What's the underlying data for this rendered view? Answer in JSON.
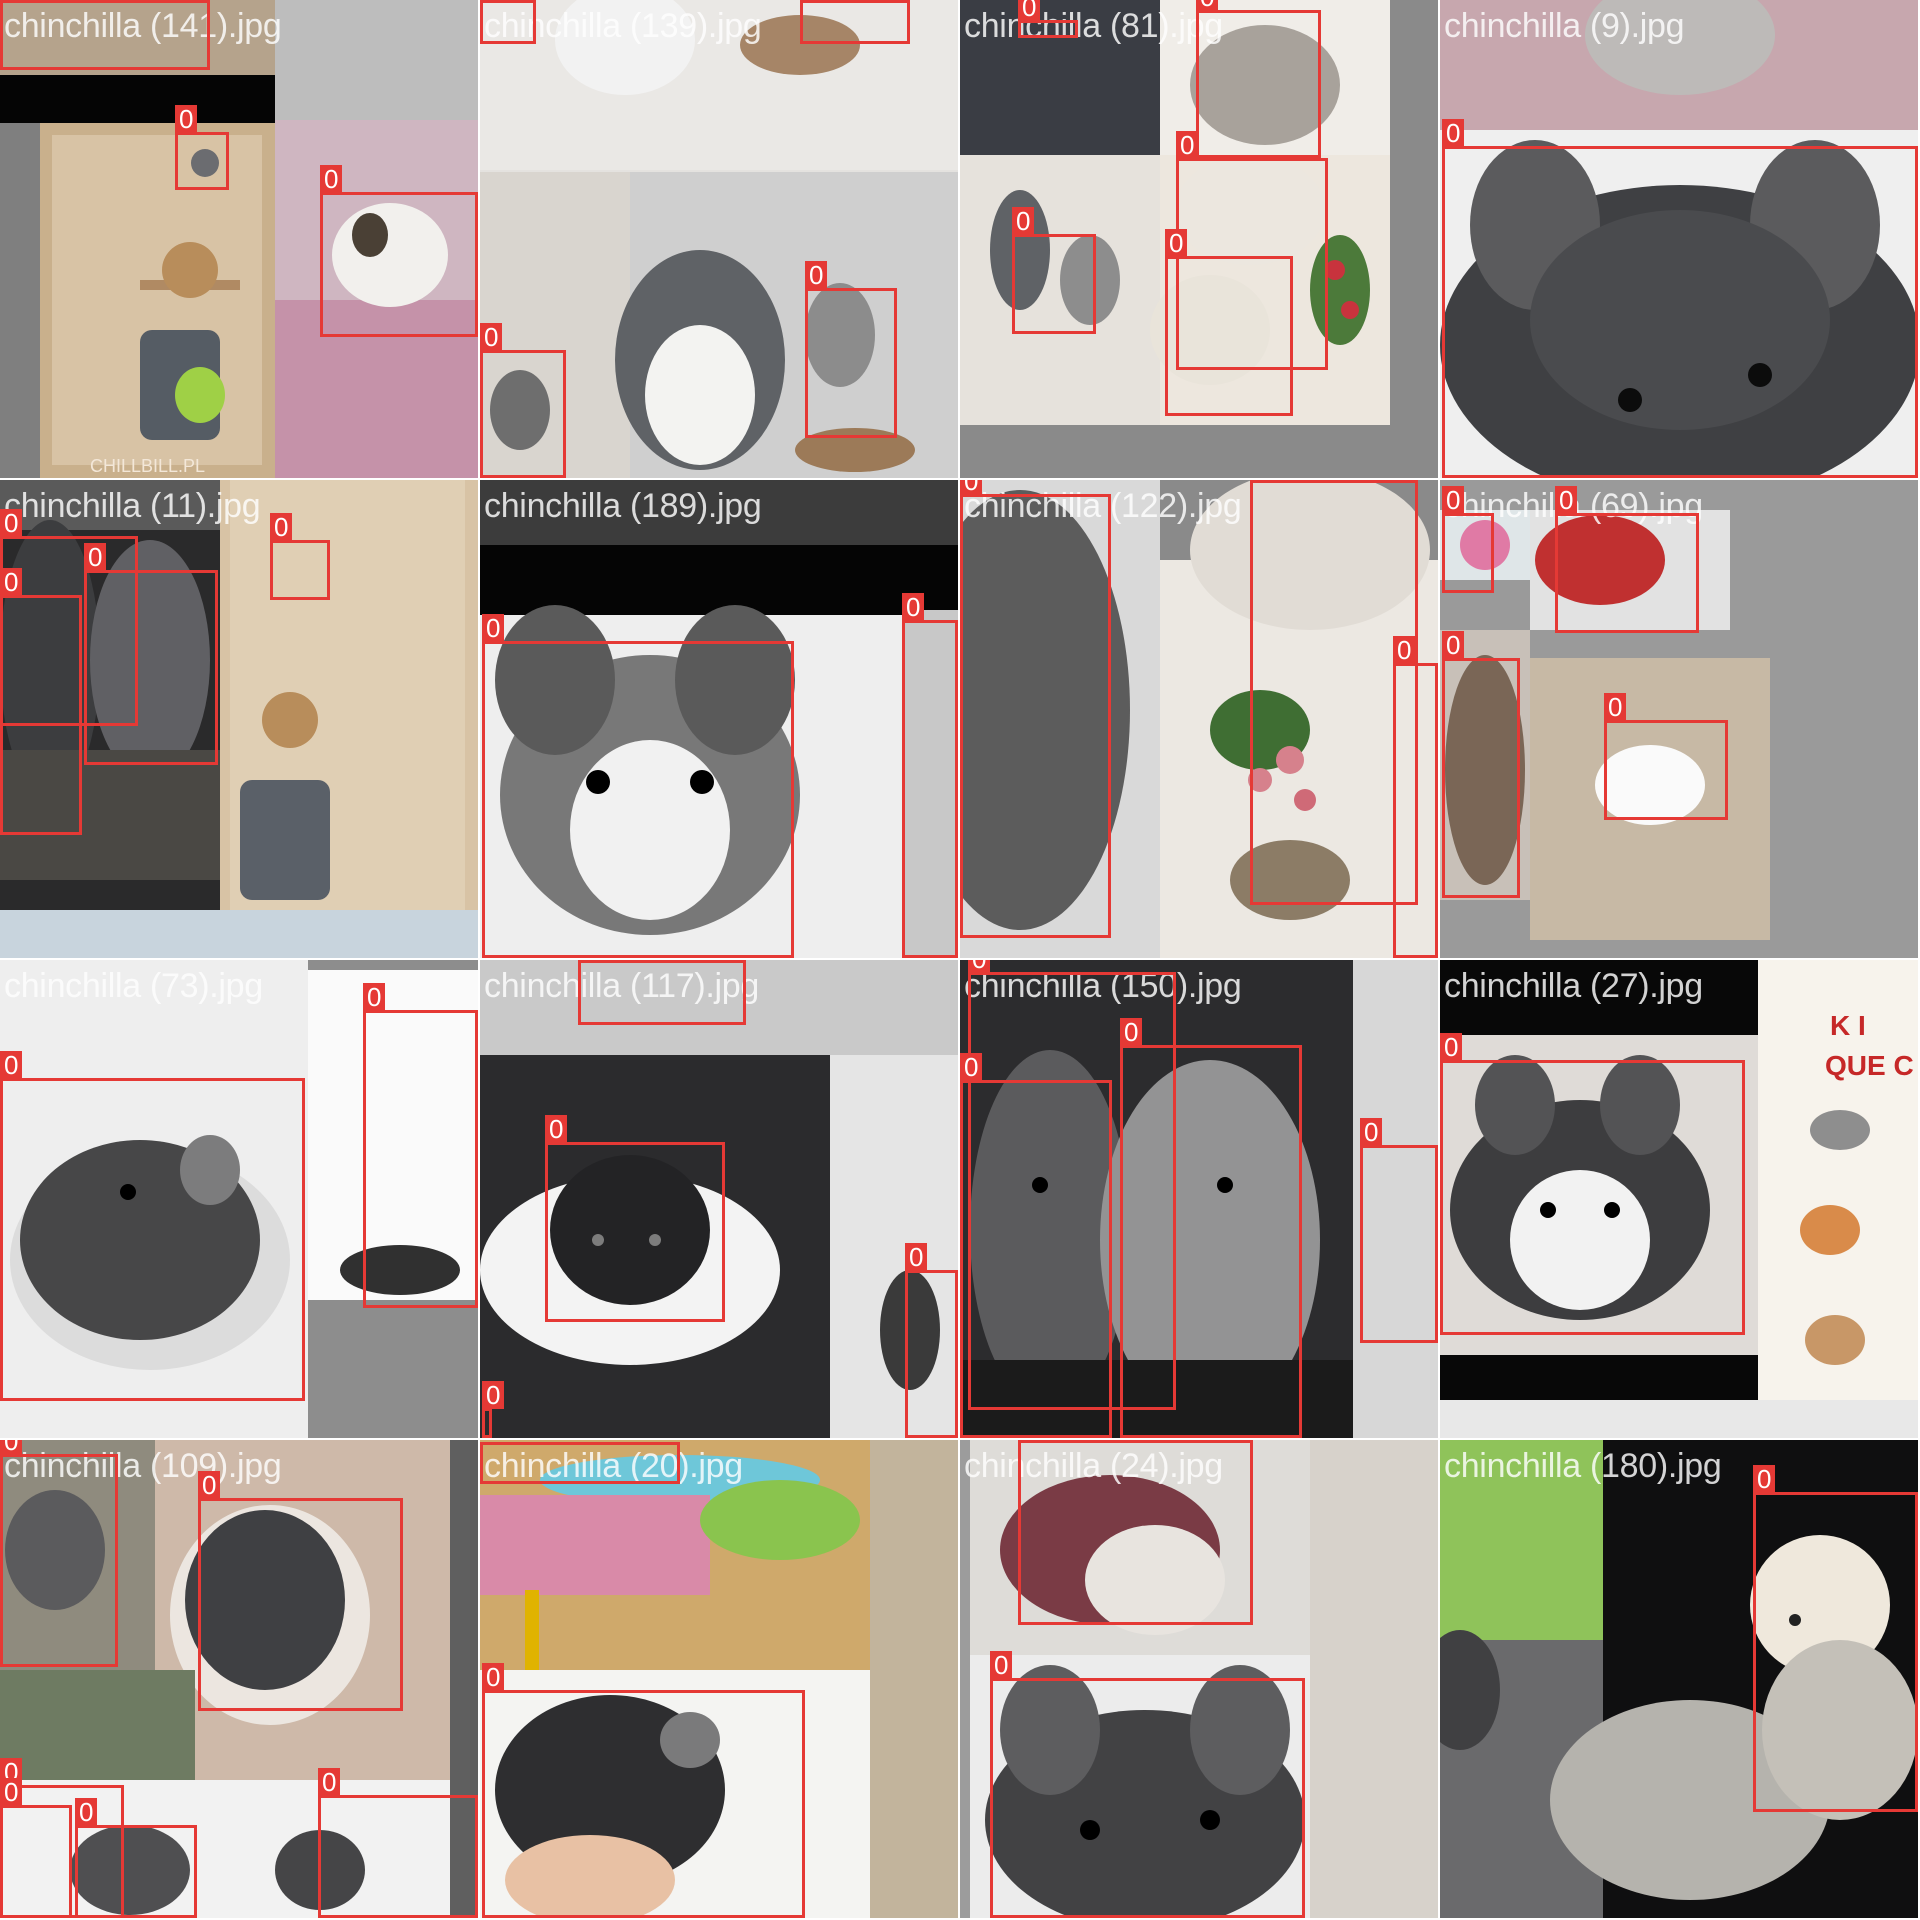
{
  "box_color": "#e53935",
  "tiles": [
    {
      "filename": "chinchilla (141).jpg",
      "theme": "cage-wood"
    },
    {
      "filename": "chinchilla (139).jpg",
      "theme": "totoro"
    },
    {
      "filename": "chinchilla (81).jpg",
      "theme": "light-room"
    },
    {
      "filename": "chinchilla (9).jpg",
      "theme": "gray-closeup"
    },
    {
      "filename": "chinchilla (11).jpg",
      "theme": "cage-wood"
    },
    {
      "filename": "chinchilla (189).jpg",
      "theme": "portrait-light"
    },
    {
      "filename": "chinchilla (122).jpg",
      "theme": "plant"
    },
    {
      "filename": "chinchilla (69).jpg",
      "theme": "mosaic-gray"
    },
    {
      "filename": "chinchilla (73).jpg",
      "theme": "bowl"
    },
    {
      "filename": "chinchilla (117).jpg",
      "theme": "cage-bars"
    },
    {
      "filename": "chinchilla (150).jpg",
      "theme": "pair-gray"
    },
    {
      "filename": "chinchilla (27).jpg",
      "theme": "poster"
    },
    {
      "filename": "chinchilla (109).jpg",
      "theme": "hay"
    },
    {
      "filename": "chinchilla (20).jpg",
      "theme": "warm-room"
    },
    {
      "filename": "chinchilla (24).jpg",
      "theme": "christmas"
    },
    {
      "filename": "chinchilla (180).jpg",
      "theme": "dark-plush"
    }
  ],
  "poster_text": [
    "K I",
    "QUE C"
  ],
  "watermark_text": "CHILLBILL.PL",
  "class_label": "0"
}
